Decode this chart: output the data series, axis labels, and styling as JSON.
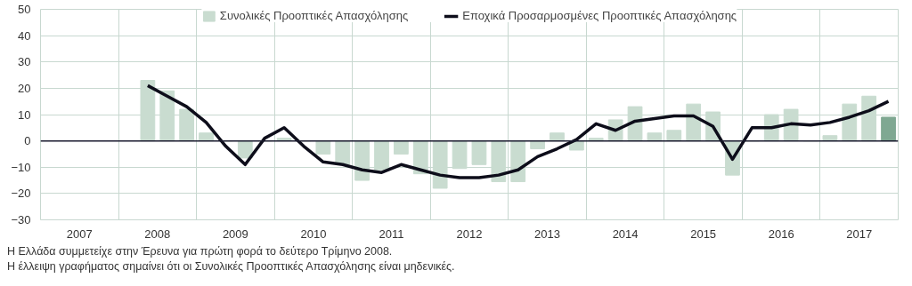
{
  "chart_data": {
    "type": "bar",
    "x": [
      2008.375,
      2008.625,
      2008.875,
      2009.125,
      2009.375,
      2009.625,
      2009.875,
      2010.125,
      2010.375,
      2010.625,
      2010.875,
      2011.125,
      2011.375,
      2011.625,
      2011.875,
      2012.125,
      2012.375,
      2012.625,
      2012.875,
      2013.125,
      2013.375,
      2013.625,
      2013.875,
      2014.125,
      2014.375,
      2014.625,
      2014.875,
      2015.125,
      2015.375,
      2015.625,
      2015.875,
      2016.125,
      2016.375,
      2016.625,
      2016.875,
      2017.125,
      2017.375,
      2017.625,
      2017.875
    ],
    "series": [
      {
        "name": "Συνολικές Προοπτικές Απασχόλησης",
        "color": "#c9dcd0",
        "colors": [
          "#c9dcd0",
          "#c9dcd0",
          "#c9dcd0",
          "#c9dcd0",
          "#c9dcd0",
          "#c9dcd0",
          "#c9dcd0",
          "#c9dcd0",
          "#c9dcd0",
          "#c9dcd0",
          "#c9dcd0",
          "#c9dcd0",
          "#c9dcd0",
          "#c9dcd0",
          "#c9dcd0",
          "#c9dcd0",
          "#c9dcd0",
          "#c9dcd0",
          "#c9dcd0",
          "#c9dcd0",
          "#c9dcd0",
          "#c9dcd0",
          "#c9dcd0",
          "#c9dcd0",
          "#c9dcd0",
          "#c9dcd0",
          "#c9dcd0",
          "#c9dcd0",
          "#c9dcd0",
          "#c9dcd0",
          "#c9dcd0",
          "#c9dcd0",
          "#c9dcd0",
          "#c9dcd0",
          "#c9dcd0",
          "#c9dcd0",
          "#c9dcd0",
          "#c9dcd0",
          "#7fa892"
        ],
        "values": [
          23,
          19,
          12,
          3,
          0,
          -6.5,
          0,
          1,
          0,
          -5,
          -9,
          -15,
          -11,
          -5,
          -12.5,
          -18,
          -10.5,
          -9,
          -15.5,
          -15.5,
          -3,
          3,
          -3.5,
          1,
          8,
          13,
          3,
          4,
          14,
          11,
          -13,
          0,
          10,
          12,
          0,
          2,
          14,
          17,
          9
        ]
      },
      {
        "name": "Εποχικά Προσαρμοσμένες Προοπτικές Απασχόλησης",
        "type": "line",
        "color": "#0d0d1a",
        "values": [
          21,
          17,
          13,
          7,
          -2,
          -9,
          1,
          5,
          -2,
          -8,
          -9,
          -11,
          -12,
          -9,
          -11,
          -13,
          -14,
          -14,
          -13,
          -11,
          -6,
          -3,
          0.5,
          6.5,
          4,
          7.5,
          8.5,
          9.5,
          9.5,
          5.5,
          -7,
          5,
          5,
          6.5,
          6,
          7,
          9,
          11.5,
          15
        ]
      }
    ],
    "xlim": [
      2007,
      2018
    ],
    "xticks": [
      {
        "value": 2007.5,
        "label": "2007"
      },
      {
        "value": 2008.5,
        "label": "2008"
      },
      {
        "value": 2009.5,
        "label": "2009"
      },
      {
        "value": 2010.5,
        "label": "2010"
      },
      {
        "value": 2011.5,
        "label": "2011"
      },
      {
        "value": 2012.5,
        "label": "2012"
      },
      {
        "value": 2013.5,
        "label": "2013"
      },
      {
        "value": 2014.5,
        "label": "2014"
      },
      {
        "value": 2015.5,
        "label": "2015"
      },
      {
        "value": 2016.5,
        "label": "2016"
      },
      {
        "value": 2017.5,
        "label": "2017"
      },
      {
        "value": 2008,
        "label": null
      },
      {
        "value": 2009,
        "label": null
      },
      {
        "value": 2010,
        "label": null
      },
      {
        "value": 2011,
        "label": null
      },
      {
        "value": 2012,
        "label": null
      },
      {
        "value": 2013,
        "label": null
      },
      {
        "value": 2014,
        "label": null
      },
      {
        "value": 2015,
        "label": null
      },
      {
        "value": 2016,
        "label": null
      },
      {
        "value": 2017,
        "label": null
      }
    ],
    "ylim": [
      -30,
      50
    ],
    "yticks": [
      -30,
      -20,
      -10,
      0,
      10,
      20,
      30,
      40,
      50
    ],
    "ref_lines": [
      {
        "axis": "y",
        "value": 0,
        "color": "#1a1a2e"
      }
    ],
    "grid": true,
    "legend": "top",
    "annotations": [
      "Η Ελλάδα συμμετείχε στην Έρευνα για πρώτη φορά το δεύτερο Τρίμηνο 2008.",
      "Η έλλειψη γραφήματος σημαίνει ότι οι Συνολικές Προοπτικές Απασχόλησης είναι μηδενικές."
    ]
  }
}
